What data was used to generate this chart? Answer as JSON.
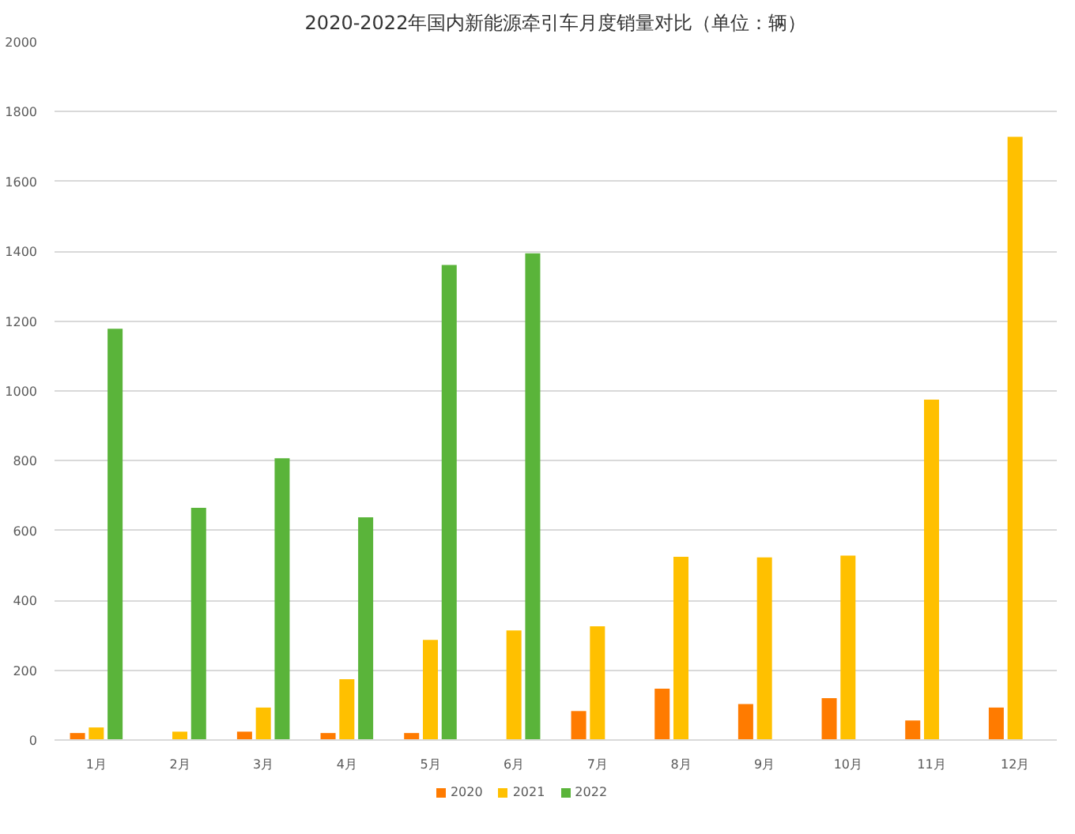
{
  "chart_data": {
    "type": "bar",
    "title": "2020-2022年国内新能源牵引车月度销量对比（单位：辆）",
    "categories": [
      "1月",
      "2月",
      "3月",
      "4月",
      "5月",
      "6月",
      "7月",
      "8月",
      "9月",
      "10月",
      "11月",
      "12月"
    ],
    "series": [
      {
        "name": "2020",
        "color": "#ff7b00",
        "values": [
          20,
          null,
          24,
          20,
          20,
          null,
          83,
          147,
          103,
          120,
          56,
          93
        ]
      },
      {
        "name": "2021",
        "color": "#ffc000",
        "values": [
          36,
          24,
          93,
          174,
          287,
          314,
          326,
          525,
          523,
          528,
          975,
          1728
        ]
      },
      {
        "name": "2022",
        "color": "#5ab43a",
        "values": [
          1178,
          665,
          807,
          638,
          1361,
          1394,
          null,
          null,
          null,
          null,
          null,
          null
        ]
      }
    ],
    "ylim": [
      0,
      2000
    ],
    "yticks": [
      0,
      200,
      400,
      600,
      800,
      1000,
      1200,
      1400,
      1600,
      1800,
      2000
    ],
    "grid": "y",
    "legend": "bottom"
  }
}
